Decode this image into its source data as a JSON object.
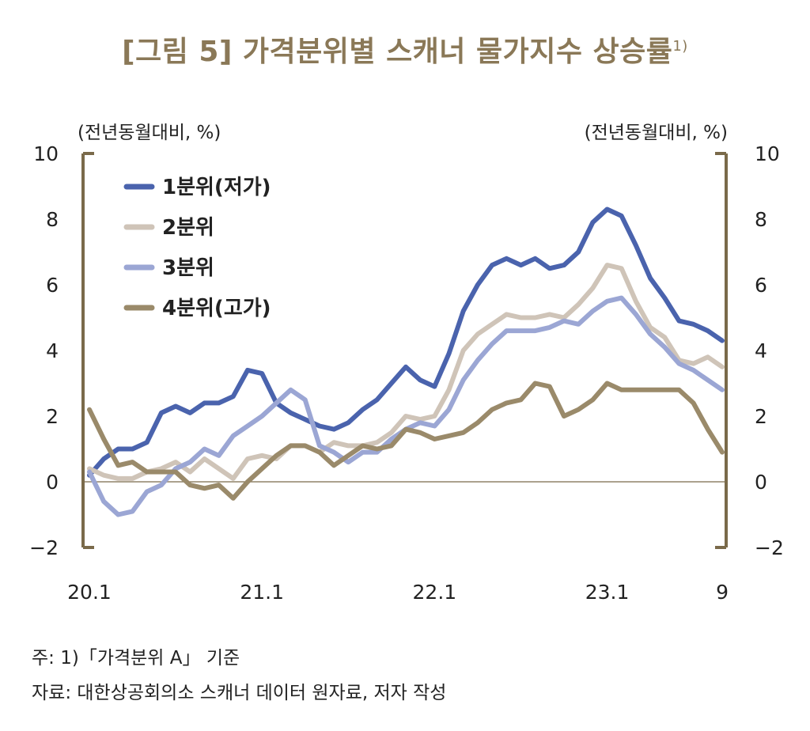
{
  "chart_data": {
    "type": "line",
    "title": "[그림 5] 가격분위별 스캐너 물가지수 상승률",
    "title_sup": "1)",
    "ylabel_left": "(전년동월대비, %)",
    "ylabel_right": "(전년동월대비, %)",
    "ylim": [
      -2,
      10
    ],
    "yticks": [
      -2,
      0,
      2,
      4,
      6,
      8,
      10
    ],
    "ytick_labels": [
      "−2",
      "0",
      "2",
      "4",
      "6",
      "8",
      "10"
    ],
    "xticks": [
      {
        "x": "2020-01",
        "label": "20.1"
      },
      {
        "x": "2021-01",
        "label": "21.1"
      },
      {
        "x": "2022-01",
        "label": "22.1"
      },
      {
        "x": "2023-01",
        "label": "23.1"
      },
      {
        "x": "2023-09",
        "label": "9"
      }
    ],
    "x": [
      "2020-01",
      "2020-02",
      "2020-03",
      "2020-04",
      "2020-05",
      "2020-06",
      "2020-07",
      "2020-08",
      "2020-09",
      "2020-10",
      "2020-11",
      "2020-12",
      "2021-01",
      "2021-02",
      "2021-03",
      "2021-04",
      "2021-05",
      "2021-06",
      "2021-07",
      "2021-08",
      "2021-09",
      "2021-10",
      "2021-11",
      "2021-12",
      "2022-01",
      "2022-02",
      "2022-03",
      "2022-04",
      "2022-05",
      "2022-06",
      "2022-07",
      "2022-08",
      "2022-09",
      "2022-10",
      "2022-11",
      "2022-12",
      "2023-01",
      "2023-02",
      "2023-03",
      "2023-04",
      "2023-05",
      "2023-06",
      "2023-07",
      "2023-08",
      "2023-09"
    ],
    "series": [
      {
        "name": "1분위(저가)",
        "color": "#4a63ad",
        "values": [
          0.2,
          0.7,
          1.0,
          1.0,
          1.2,
          2.1,
          2.3,
          2.1,
          2.4,
          2.4,
          2.6,
          3.4,
          3.3,
          2.4,
          2.1,
          1.9,
          1.7,
          1.6,
          1.8,
          2.2,
          2.5,
          3.0,
          3.5,
          3.1,
          2.9,
          3.9,
          5.2,
          6.0,
          6.6,
          6.8,
          6.6,
          6.8,
          6.5,
          6.6,
          7.0,
          7.9,
          8.3,
          8.1,
          7.2,
          6.2,
          5.6,
          4.9,
          4.8,
          4.6,
          4.3
        ]
      },
      {
        "name": "2분위",
        "color": "#cfc4b8",
        "values": [
          0.4,
          0.2,
          0.1,
          0.1,
          0.3,
          0.4,
          0.6,
          0.3,
          0.7,
          0.4,
          0.1,
          0.7,
          0.8,
          0.7,
          1.1,
          1.1,
          0.9,
          1.2,
          1.1,
          1.1,
          1.2,
          1.5,
          2.0,
          1.9,
          2.0,
          2.8,
          4.0,
          4.5,
          4.8,
          5.1,
          5.0,
          5.0,
          5.1,
          5.0,
          5.4,
          5.9,
          6.6,
          6.5,
          5.5,
          4.7,
          4.4,
          3.7,
          3.6,
          3.8,
          3.5
        ]
      },
      {
        "name": "3분위",
        "color": "#9ba6d4",
        "values": [
          0.3,
          -0.6,
          -1.0,
          -0.9,
          -0.3,
          -0.1,
          0.4,
          0.6,
          1.0,
          0.8,
          1.4,
          1.7,
          2.0,
          2.4,
          2.8,
          2.5,
          1.1,
          0.9,
          0.6,
          0.9,
          0.9,
          1.3,
          1.6,
          1.8,
          1.7,
          2.2,
          3.1,
          3.7,
          4.2,
          4.6,
          4.6,
          4.6,
          4.7,
          4.9,
          4.8,
          5.2,
          5.5,
          5.6,
          5.1,
          4.5,
          4.1,
          3.6,
          3.4,
          3.1,
          2.8
        ]
      },
      {
        "name": "4분위(고가)",
        "color": "#9a8a6a",
        "values": [
          2.2,
          1.3,
          0.5,
          0.6,
          0.3,
          0.3,
          0.3,
          -0.1,
          -0.2,
          -0.1,
          -0.5,
          0.0,
          0.4,
          0.8,
          1.1,
          1.1,
          0.9,
          0.5,
          0.8,
          1.1,
          1.0,
          1.1,
          1.6,
          1.5,
          1.3,
          1.4,
          1.5,
          1.8,
          2.2,
          2.4,
          2.5,
          3.0,
          2.9,
          2.0,
          2.2,
          2.5,
          3.0,
          2.8,
          2.8,
          2.8,
          2.8,
          2.8,
          2.4,
          1.6,
          0.9
        ]
      }
    ],
    "grid": false,
    "legend_position": "top-left",
    "axis_color": "#7a6a4a"
  },
  "notes": {
    "note1": "주: 1)「가격분위 A」 기준",
    "note2": "자료: 대한상공회의소 스캐너 데이터 원자료, 저자 작성"
  }
}
